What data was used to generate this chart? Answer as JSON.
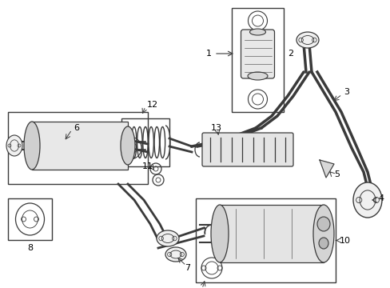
{
  "bg_color": "#ffffff",
  "line_color": "#3a3a3a",
  "text_color": "#000000",
  "figsize": [
    4.89,
    3.6
  ],
  "dpi": 100
}
